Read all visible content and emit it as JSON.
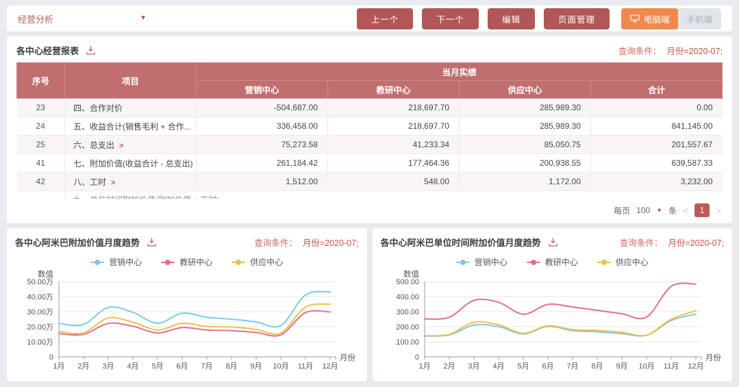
{
  "toolbar": {
    "dashboard_label": "经营分析",
    "nav_buttons": [
      "上一个",
      "下一个",
      "编辑",
      "页面管理"
    ],
    "device_pc": "电脑端",
    "device_mobile": "手机端",
    "accent_color": "#b15757",
    "pc_button_color": "#f0894e"
  },
  "report": {
    "title": "各中心经营报表",
    "query_label": "查询条件：",
    "query_value": "月份=2020-07;",
    "header": {
      "col_index": "序号",
      "col_item": "项目",
      "col_group": "当月实绩",
      "centers": [
        "营销中心",
        "教研中心",
        "供应中心",
        "合计"
      ]
    },
    "rows": [
      {
        "no": "23",
        "item": "四、合作对价",
        "expandable": false,
        "values": [
          "-504,687.00",
          "218,697.70",
          "285,989.30",
          "0.00"
        ]
      },
      {
        "no": "24",
        "item": "五、收益合计(销售毛利 + 合作...",
        "expandable": false,
        "values": [
          "336,458.00",
          "218,697.70",
          "285,989.30",
          "841,145.00"
        ]
      },
      {
        "no": "25",
        "item": "六、总支出",
        "expandable": true,
        "values": [
          "75,273.58",
          "41,233.34",
          "85,050.75",
          "201,557.67"
        ]
      },
      {
        "no": "41",
        "item": "七、附加价值(收益合计 - 总支出)",
        "expandable": false,
        "values": [
          "261,184.42",
          "177,464.36",
          "200,938.55",
          "639,587.33"
        ]
      },
      {
        "no": "42",
        "item": "八、工时",
        "expandable": true,
        "values": [
          "1,512.00",
          "548.00",
          "1,172.00",
          "3,232.00"
        ]
      }
    ],
    "partial_row_item": "九、单位时间附加价值(附加价值 ÷ 工时)",
    "expand_arrow": ">",
    "header_color": "#c06e6e",
    "pagination": {
      "per_page_label": "每页",
      "per_page_value": "100",
      "unit_label": "条",
      "prev": "<",
      "page": "1",
      "next": ">"
    }
  },
  "chart_data": [
    {
      "type": "line",
      "title": "各中心阿米巴附加价值月度趋势",
      "query_label": "查询条件：",
      "query_value": "月份=2020-07;",
      "ylabel": "数值",
      "xlabel": "月份",
      "categories": [
        "1月",
        "2月",
        "3月",
        "4月",
        "5月",
        "6月",
        "7月",
        "8月",
        "9月",
        "10月",
        "11月",
        "12月"
      ],
      "ylim": [
        0,
        50
      ],
      "ytick_labels": [
        "0",
        "10.00万",
        "20.00万",
        "30.00万",
        "40.00万",
        "50.00万"
      ],
      "grid": true,
      "legend_position": "top",
      "series": [
        {
          "name": "营销中心",
          "color": "#7ec9e6",
          "values": [
            22.2,
            21.5,
            32.8,
            29.5,
            22.3,
            29.0,
            26.3,
            25.0,
            23.2,
            20.8,
            41.0,
            43.2
          ]
        },
        {
          "name": "教研中心",
          "color": "#e0708e",
          "values": [
            15.4,
            14.9,
            22.2,
            20.3,
            15.9,
            19.4,
            17.8,
            17.4,
            16.2,
            14.6,
            29.4,
            29.8
          ]
        },
        {
          "name": "供应中心",
          "color": "#ecc14c",
          "values": [
            16.8,
            16.0,
            25.8,
            23.0,
            17.8,
            22.3,
            20.2,
            19.8,
            18.2,
            15.8,
            33.0,
            35.0
          ]
        }
      ]
    },
    {
      "type": "line",
      "title": "各中心阿米巴单位时间附加价值月度趋势",
      "query_label": "查询条件：",
      "query_value": "月份=2020-07;",
      "ylabel": "数值",
      "xlabel": "月份",
      "categories": [
        "1月",
        "2月",
        "3月",
        "4月",
        "5月",
        "6月",
        "7月",
        "8月",
        "9月",
        "10月",
        "11月",
        "12月"
      ],
      "ylim": [
        0,
        500
      ],
      "ytick_labels": [
        "0",
        "100.00",
        "200.00",
        "300.00",
        "400.00",
        "500.00"
      ],
      "grid": true,
      "legend_position": "top",
      "series": [
        {
          "name": "营销中心",
          "color": "#7ec9e6",
          "values": [
            137,
            146,
            211,
            201,
            152,
            202,
            174,
            166,
            154,
            143,
            241,
            284
          ]
        },
        {
          "name": "教研中心",
          "color": "#e0708e",
          "values": [
            252,
            263,
            375,
            362,
            283,
            348,
            331,
            309,
            286,
            264,
            468,
            483
          ]
        },
        {
          "name": "供应中心",
          "color": "#ecc14c",
          "values": [
            140,
            149,
            230,
            213,
            156,
            206,
            181,
            176,
            163,
            144,
            250,
            306
          ]
        }
      ]
    }
  ]
}
